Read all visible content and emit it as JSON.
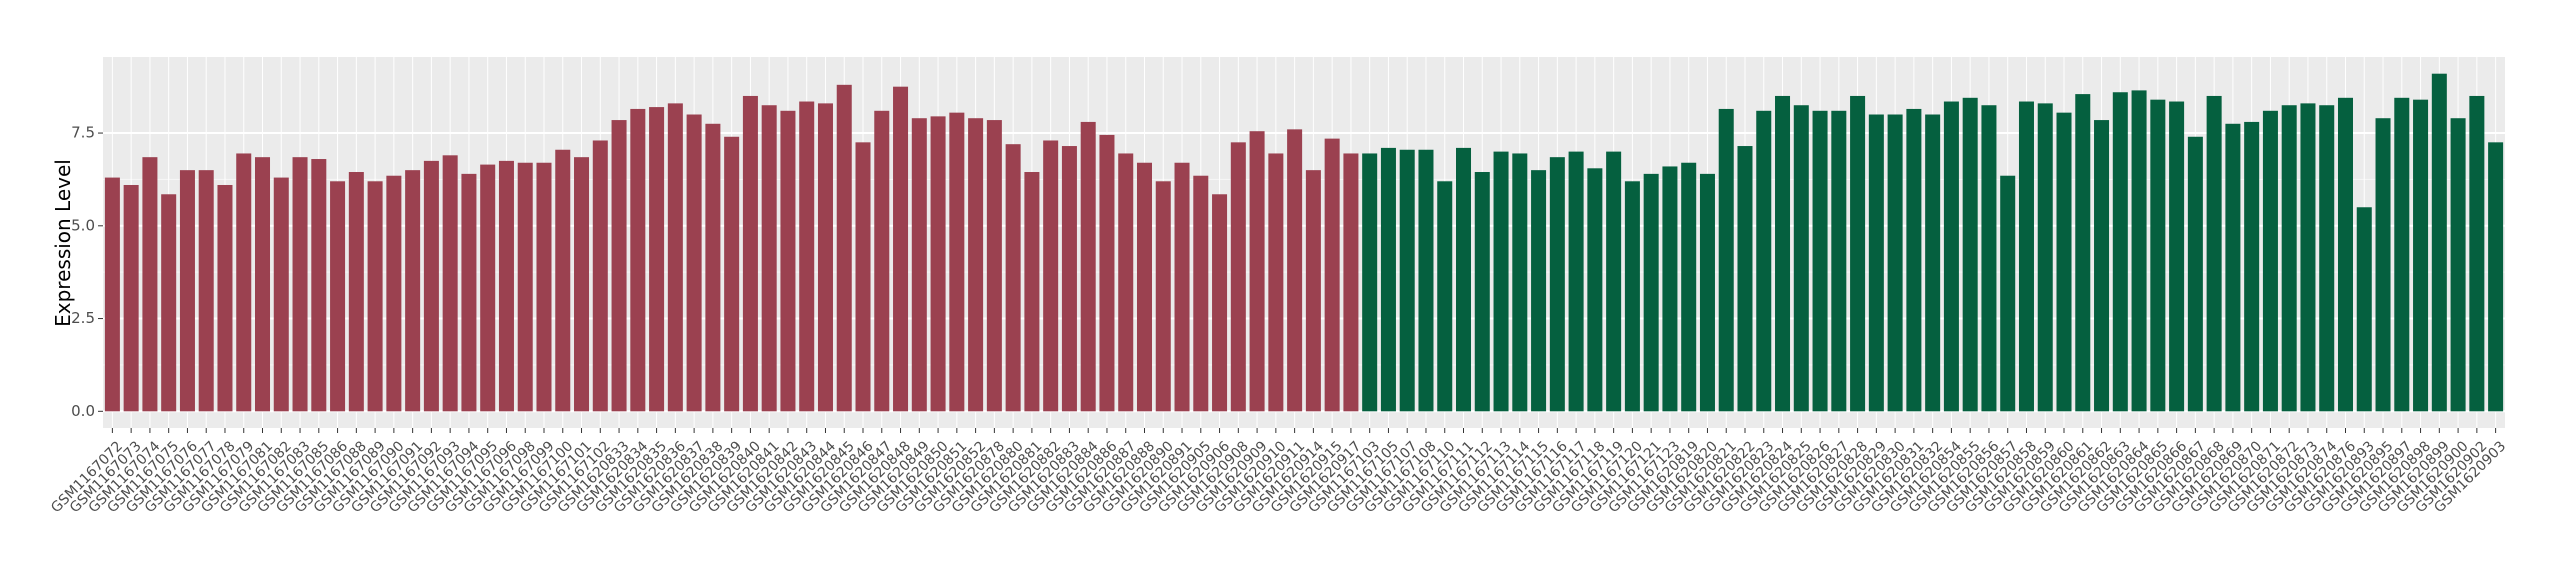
{
  "chart_data": {
    "type": "bar",
    "y_label": "Expression Level",
    "ylim": [
      -0.45,
      9.55
    ],
    "yticks": [
      {
        "value": 0,
        "label": "0.0"
      },
      {
        "value": 2.5,
        "label": "2.5"
      },
      {
        "value": 5,
        "label": "5.0"
      },
      {
        "value": 7.5,
        "label": "7.5"
      }
    ],
    "grid": true,
    "series": [
      {
        "color": "#9b4150",
        "categories": [
          "GSM1167072",
          "GSM1167073",
          "GSM1167074",
          "GSM1167075",
          "GSM1167076",
          "GSM1167077",
          "GSM1167078",
          "GSM1167079",
          "GSM1167081",
          "GSM1167082",
          "GSM1167083",
          "GSM1167085",
          "GSM1167086",
          "GSM1167088",
          "GSM1167089",
          "GSM1167090",
          "GSM1167091",
          "GSM1167092",
          "GSM1167093",
          "GSM1167094",
          "GSM1167095",
          "GSM1167096",
          "GSM1167098",
          "GSM1167099",
          "GSM1167100",
          "GSM1167101",
          "GSM1167102",
          "GSM1620833",
          "GSM1620834",
          "GSM1620835",
          "GSM1620836",
          "GSM1620837",
          "GSM1620838",
          "GSM1620839",
          "GSM1620840",
          "GSM1620841",
          "GSM1620842",
          "GSM1620843",
          "GSM1620844",
          "GSM1620845",
          "GSM1620846",
          "GSM1620847",
          "GSM1620848",
          "GSM1620849",
          "GSM1620850",
          "GSM1620851",
          "GSM1620852",
          "GSM1620878",
          "GSM1620880",
          "GSM1620881",
          "GSM1620882",
          "GSM1620883",
          "GSM1620884",
          "GSM1620886",
          "GSM1620887",
          "GSM1620888",
          "GSM1620890",
          "GSM1620891",
          "GSM1620905",
          "GSM1620906",
          "GSM1620908",
          "GSM1620909",
          "GSM1620910",
          "GSM1620911",
          "GSM1620914",
          "GSM1620915",
          "GSM1620917"
        ],
        "values": [
          6.3,
          6.1,
          6.85,
          5.85,
          6.5,
          6.5,
          6.1,
          6.95,
          6.85,
          6.3,
          6.85,
          6.8,
          6.2,
          6.45,
          6.2,
          6.35,
          6.5,
          6.75,
          6.9,
          6.4,
          6.65,
          6.75,
          6.7,
          6.7,
          7.05,
          6.85,
          7.3,
          7.85,
          8.15,
          8.2,
          8.3,
          8.0,
          7.75,
          7.4,
          8.5,
          8.25,
          8.1,
          8.35,
          8.3,
          8.8,
          7.25,
          8.1,
          8.75,
          7.9,
          7.95,
          8.05,
          7.9,
          7.85,
          7.2,
          6.45,
          7.3,
          7.15,
          7.8,
          7.45,
          6.95,
          6.7,
          6.2,
          6.7,
          6.35,
          5.85,
          7.25,
          7.55,
          6.95,
          7.6,
          6.5,
          7.35,
          6.95
        ]
      },
      {
        "color": "#05603f",
        "categories": [
          "GSM1167103",
          "GSM1167105",
          "GSM1167107",
          "GSM1167108",
          "GSM1167110",
          "GSM1167111",
          "GSM1167112",
          "GSM1167113",
          "GSM1167114",
          "GSM1167115",
          "GSM1167116",
          "GSM1167117",
          "GSM1167118",
          "GSM1167119",
          "GSM1167120",
          "GSM1167121",
          "GSM1167123",
          "GSM1620819",
          "GSM1620820",
          "GSM1620821",
          "GSM1620822",
          "GSM1620823",
          "GSM1620824",
          "GSM1620825",
          "GSM1620826",
          "GSM1620827",
          "GSM1620828",
          "GSM1620829",
          "GSM1620830",
          "GSM1620831",
          "GSM1620832",
          "GSM1620854",
          "GSM1620855",
          "GSM1620856",
          "GSM1620857",
          "GSM1620858",
          "GSM1620859",
          "GSM1620860",
          "GSM1620861",
          "GSM1620862",
          "GSM1620863",
          "GSM1620864",
          "GSM1620865",
          "GSM1620866",
          "GSM1620867",
          "GSM1620868",
          "GSM1620869",
          "GSM1620870",
          "GSM1620871",
          "GSM1620872",
          "GSM1620873",
          "GSM1620874",
          "GSM1620876",
          "GSM1620893",
          "GSM1620895",
          "GSM1620897",
          "GSM1620898",
          "GSM1620899",
          "GSM1620900",
          "GSM1620902",
          "GSM1620903"
        ],
        "values": [
          6.95,
          7.1,
          7.05,
          7.05,
          6.2,
          7.1,
          6.45,
          7.0,
          6.95,
          6.5,
          6.85,
          7.0,
          6.55,
          7.0,
          6.2,
          6.4,
          6.6,
          6.7,
          6.4,
          8.15,
          7.15,
          8.1,
          8.5,
          8.25,
          8.1,
          8.1,
          8.5,
          8.0,
          8.0,
          8.15,
          8.0,
          8.35,
          8.45,
          8.25,
          6.35,
          8.35,
          8.3,
          8.05,
          8.55,
          7.85,
          8.6,
          8.65,
          8.4,
          8.35,
          7.4,
          8.5,
          7.75,
          7.8,
          8.1,
          8.25,
          8.3,
          8.25,
          8.45,
          5.5,
          7.9,
          8.45,
          8.4,
          9.1,
          7.9,
          8.5,
          7.25
        ]
      }
    ]
  }
}
